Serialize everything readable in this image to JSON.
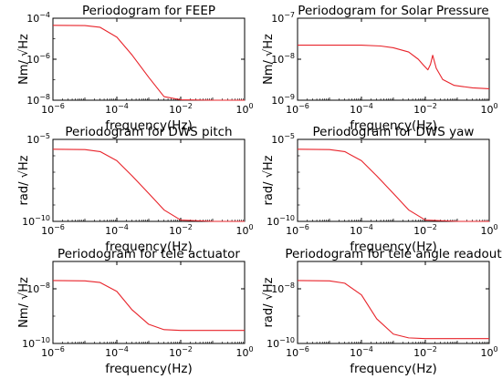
{
  "chart_data": [
    {
      "type": "line",
      "title": "Periodogram for FEEP",
      "xlabel": "frequency(Hz)",
      "ylabel": "Nm/ √Hz",
      "xscale": "log",
      "yscale": "log",
      "xlim": [
        1e-06,
        1
      ],
      "ylim": [
        1e-08,
        0.0001
      ],
      "xticks": [
        {
          "base": "10",
          "exp": "−6"
        },
        {
          "base": "10",
          "exp": "−4"
        },
        {
          "base": "10",
          "exp": "−2"
        },
        {
          "base": "10",
          "exp": "0"
        }
      ],
      "yticks": [
        {
          "base": "10",
          "exp": "−8"
        },
        {
          "base": "10",
          "exp": "−6"
        },
        {
          "base": "10",
          "exp": "−4"
        }
      ],
      "series_color": "#e8232a",
      "x": [
        1e-06,
        1e-05,
        3e-05,
        0.0001,
        0.0003,
        0.001,
        0.003,
        0.01,
        0.1,
        1
      ],
      "y": [
        4.5e-05,
        4.4e-05,
        3.6e-05,
        1.2e-05,
        1.6e-06,
        1.3e-07,
        1.5e-08,
        1.05e-08,
        1e-08,
        1e-08
      ]
    },
    {
      "type": "line",
      "title": "Periodogram for Solar Pressure",
      "xlabel": "frequency(Hz)",
      "ylabel": "Nm/ √Hz",
      "xscale": "log",
      "yscale": "log",
      "xlim": [
        1e-06,
        1
      ],
      "ylim": [
        1e-09,
        1e-07
      ],
      "xticks": [
        {
          "base": "10",
          "exp": "−6"
        },
        {
          "base": "10",
          "exp": "−4"
        },
        {
          "base": "10",
          "exp": "−2"
        },
        {
          "base": "10",
          "exp": "0"
        }
      ],
      "yticks": [
        {
          "base": "10",
          "exp": "−9"
        },
        {
          "base": "10",
          "exp": "−8"
        },
        {
          "base": "10",
          "exp": "−7"
        }
      ],
      "series_color": "#e8232a",
      "x": [
        1e-06,
        0.0001,
        0.0004,
        0.001,
        0.003,
        0.006,
        0.009,
        0.012,
        0.0145,
        0.017,
        0.022,
        0.035,
        0.08,
        0.3,
        1
      ],
      "y": [
        2.2e-08,
        2.2e-08,
        2.1e-08,
        1.9e-08,
        1.5e-08,
        1e-08,
        7e-09,
        5.5e-09,
        7.5e-09,
        1.25e-08,
        6e-09,
        3.2e-09,
        2.3e-09,
        2e-09,
        1.9e-09
      ]
    },
    {
      "type": "line",
      "title": "Periodogram for DWS pitch",
      "xlabel": "frequency(Hz)",
      "ylabel": "rad/ √Hz",
      "xscale": "log",
      "yscale": "log",
      "xlim": [
        1e-06,
        1
      ],
      "ylim": [
        1e-10,
        1e-05
      ],
      "xticks": [
        {
          "base": "10",
          "exp": "−6"
        },
        {
          "base": "10",
          "exp": "−4"
        },
        {
          "base": "10",
          "exp": "−2"
        },
        {
          "base": "10",
          "exp": "0"
        }
      ],
      "yticks": [
        {
          "base": "10",
          "exp": "−10"
        },
        {
          "base": "10",
          "exp": "−5"
        }
      ],
      "series_color": "#e8232a",
      "x": [
        1e-06,
        1e-05,
        3e-05,
        0.0001,
        0.0003,
        0.001,
        0.003,
        0.01,
        0.1,
        1
      ],
      "y": [
        2.5e-06,
        2.4e-06,
        1.8e-06,
        5e-07,
        6e-08,
        5e-09,
        5e-10,
        1.2e-10,
        1e-10,
        1e-10
      ]
    },
    {
      "type": "line",
      "title": "Periodogram for DWS yaw",
      "xlabel": "frequency(Hz)",
      "ylabel": "rad/ √Hz",
      "xscale": "log",
      "yscale": "log",
      "xlim": [
        1e-06,
        1
      ],
      "ylim": [
        1e-10,
        1e-05
      ],
      "xticks": [
        {
          "base": "10",
          "exp": "−6"
        },
        {
          "base": "10",
          "exp": "−4"
        },
        {
          "base": "10",
          "exp": "−2"
        },
        {
          "base": "10",
          "exp": "0"
        }
      ],
      "yticks": [
        {
          "base": "10",
          "exp": "−10"
        },
        {
          "base": "10",
          "exp": "−5"
        }
      ],
      "series_color": "#e8232a",
      "x": [
        1e-06,
        1e-05,
        3e-05,
        0.0001,
        0.0003,
        0.001,
        0.003,
        0.01,
        0.1,
        1
      ],
      "y": [
        2.5e-06,
        2.4e-06,
        1.8e-06,
        5e-07,
        6e-08,
        5e-09,
        5e-10,
        1.2e-10,
        1e-10,
        1e-10
      ]
    },
    {
      "type": "line",
      "title": "Periodogram for tele actuator",
      "xlabel": "frequency(Hz)",
      "ylabel": "Nm/ √Hz",
      "xscale": "log",
      "yscale": "log",
      "xlim": [
        1e-06,
        1
      ],
      "ylim": [
        1e-10,
        1e-07
      ],
      "xticks": [
        {
          "base": "10",
          "exp": "−6"
        },
        {
          "base": "10",
          "exp": "−4"
        },
        {
          "base": "10",
          "exp": "−2"
        },
        {
          "base": "10",
          "exp": "0"
        }
      ],
      "yticks": [
        {
          "base": "10",
          "exp": "−10"
        },
        {
          "base": "10",
          "exp": "−8"
        }
      ],
      "series_color": "#e8232a",
      "x": [
        1e-06,
        1e-05,
        3e-05,
        0.0001,
        0.0003,
        0.001,
        0.003,
        0.01,
        0.1,
        1
      ],
      "y": [
        2e-08,
        1.95e-08,
        1.7e-08,
        8e-09,
        1.7e-09,
        5e-10,
        3.2e-10,
        3e-10,
        3e-10,
        3e-10
      ]
    },
    {
      "type": "line",
      "title": "Periodogram for tele angle readout",
      "xlabel": "frequency(Hz)",
      "ylabel": "rad/ √Hz",
      "xscale": "log",
      "yscale": "log",
      "xlim": [
        1e-06,
        1
      ],
      "ylim": [
        1e-10,
        1e-07
      ],
      "xticks": [
        {
          "base": "10",
          "exp": "−6"
        },
        {
          "base": "10",
          "exp": "−4"
        },
        {
          "base": "10",
          "exp": "−2"
        },
        {
          "base": "10",
          "exp": "0"
        }
      ],
      "yticks": [
        {
          "base": "10",
          "exp": "−10"
        },
        {
          "base": "10",
          "exp": "−8"
        }
      ],
      "series_color": "#e8232a",
      "x": [
        1e-06,
        1e-05,
        3e-05,
        0.0001,
        0.0003,
        0.001,
        0.003,
        0.01,
        0.1,
        1
      ],
      "y": [
        2e-08,
        1.95e-08,
        1.6e-08,
        6e-09,
        8e-10,
        2.2e-10,
        1.6e-10,
        1.5e-10,
        1.5e-10,
        1.5e-10
      ]
    }
  ]
}
